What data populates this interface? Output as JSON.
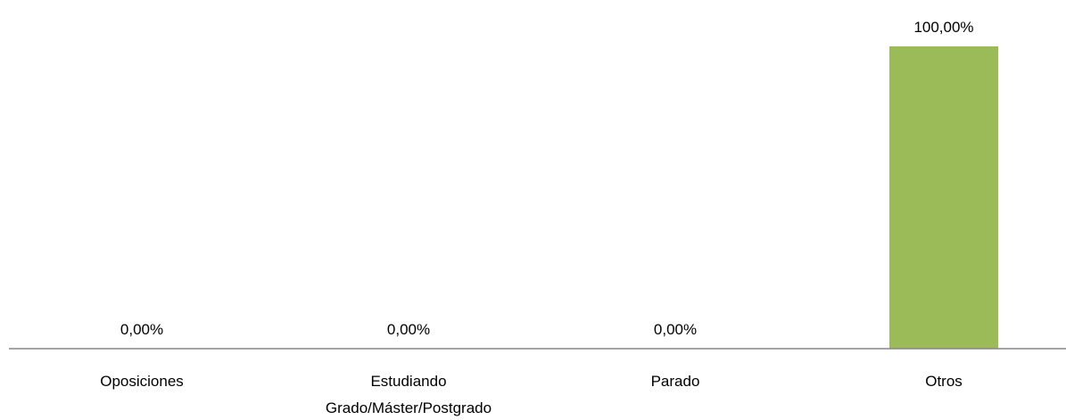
{
  "chart_data": {
    "type": "bar",
    "categories": [
      [
        "Oposiciones"
      ],
      [
        "Estudiando",
        "Grado/Máster/Postgrado"
      ],
      [
        "Parado"
      ],
      [
        "Otros"
      ]
    ],
    "values": [
      0,
      0,
      0,
      100
    ],
    "data_labels": [
      "0,00%",
      "0,00%",
      "0,00%",
      "100,00%"
    ],
    "ylim": [
      0,
      100
    ],
    "grid": false,
    "legend": "none",
    "title": "",
    "xlabel": "",
    "ylabel": "",
    "colors": {
      "bar": "#9bbb59",
      "axis": "#868686",
      "text": "#000000"
    }
  }
}
